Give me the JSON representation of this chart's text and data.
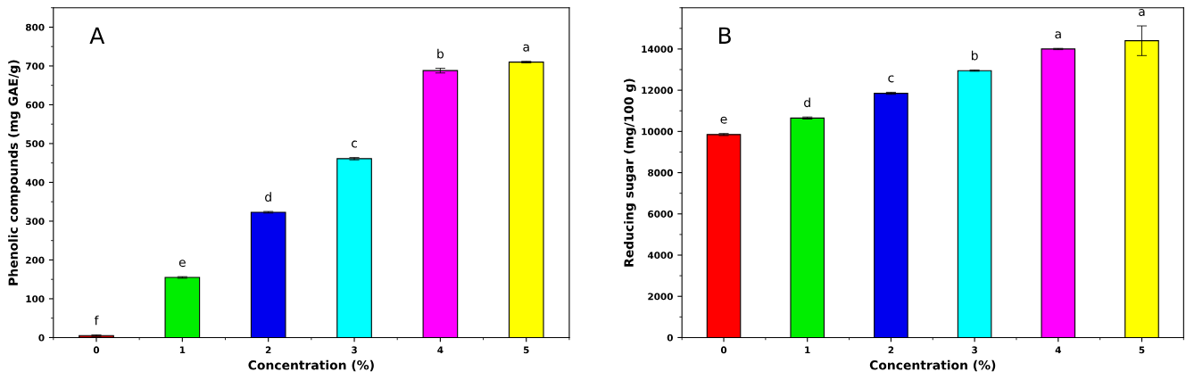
{
  "chart_data": [
    {
      "type": "bar",
      "xlabel": "Concentration (%)",
      "ylabel": "Phenolic compounds (mg GAE/g)",
      "categories": [
        "0",
        "1",
        "2",
        "3",
        "4",
        "5"
      ],
      "values": [
        5,
        155,
        323,
        461,
        688,
        710
      ],
      "errors": [
        2,
        2,
        2,
        3,
        6,
        2
      ],
      "colors": [
        "#cc0000",
        "#00ee00",
        "#0000ee",
        "#00ffff",
        "#ff00ff",
        "#ffff00"
      ],
      "ylim": [
        0,
        850
      ],
      "yticks": [
        0,
        100,
        200,
        300,
        400,
        500,
        600,
        700,
        800
      ],
      "grid": false,
      "annotations": [
        "A",
        "f",
        "e",
        "d",
        "c",
        "b",
        "a"
      ]
    },
    {
      "type": "bar",
      "xlabel": "Concentration (%)",
      "ylabel": "Reducing sugar (mg/100 g)",
      "categories": [
        "0",
        "1",
        "2",
        "3",
        "4",
        "5"
      ],
      "values": [
        9850,
        10650,
        11850,
        12950,
        14000,
        14400
      ],
      "errors": [
        50,
        50,
        50,
        30,
        30,
        720
      ],
      "colors": [
        "#ff0000",
        "#00ee00",
        "#0000ee",
        "#00ffff",
        "#ff00ff",
        "#ffff00"
      ],
      "ylim": [
        0,
        16000
      ],
      "yticks": [
        0,
        2000,
        4000,
        6000,
        8000,
        10000,
        12000,
        14000
      ],
      "grid": false,
      "annotations": [
        "B",
        "e",
        "d",
        "c",
        "b",
        "a",
        "a"
      ]
    }
  ]
}
